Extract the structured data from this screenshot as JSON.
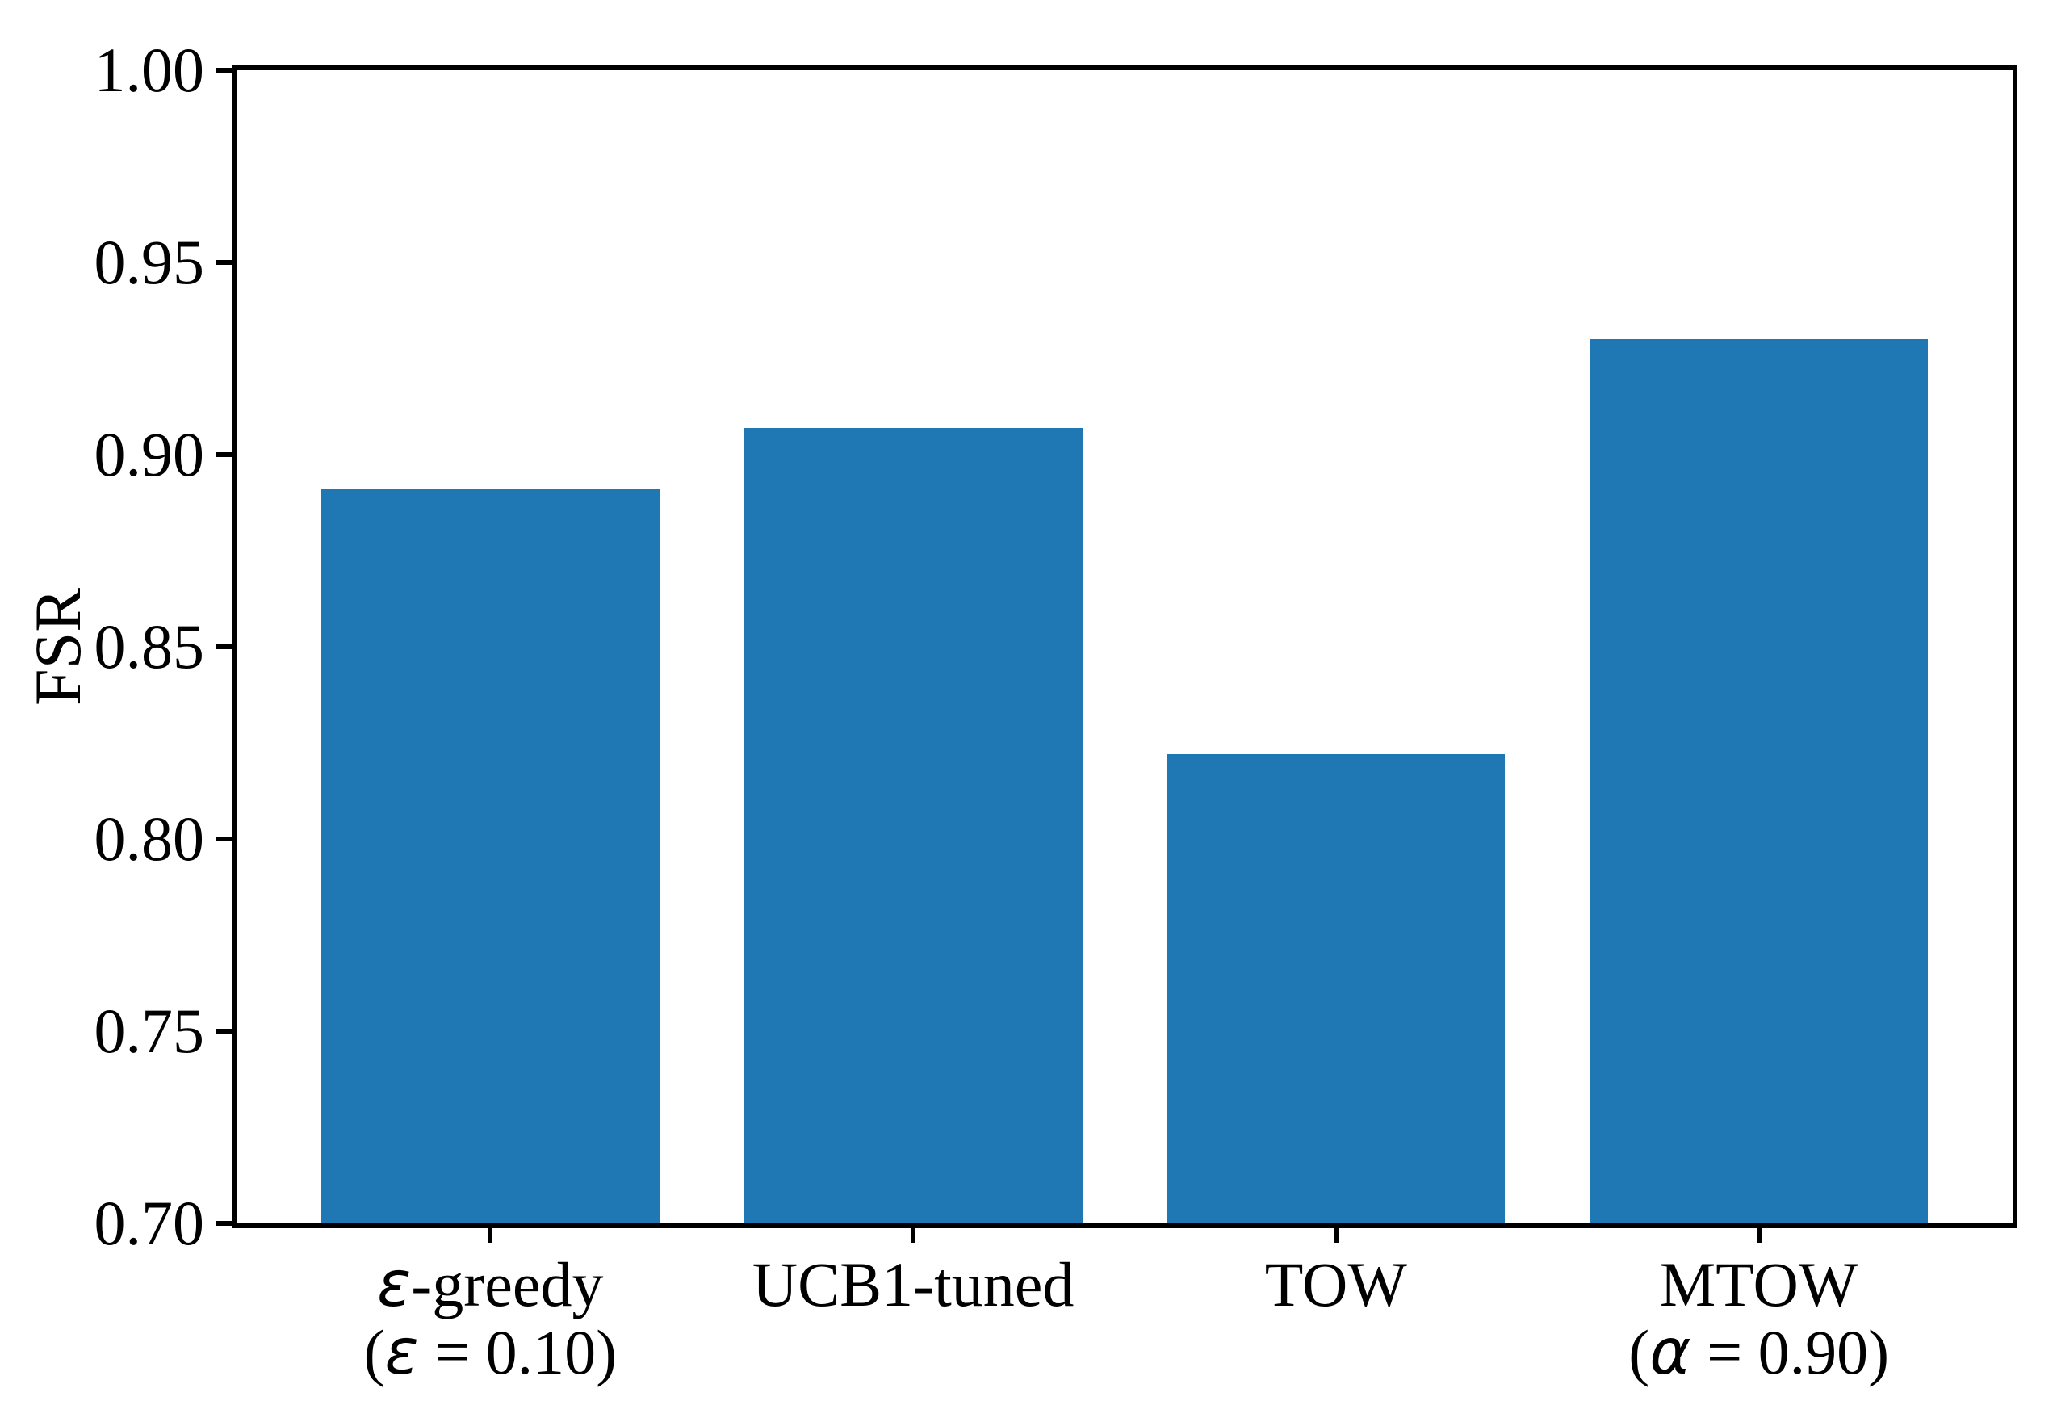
{
  "chart_data": {
    "type": "bar",
    "title": "",
    "xlabel": "",
    "ylabel": "FSR",
    "ylim": [
      0.7,
      1.0
    ],
    "ytick_values": [
      0.7,
      0.75,
      0.8,
      0.85,
      0.9,
      0.95,
      1.0
    ],
    "ytick_labels": [
      "0.70",
      "0.75",
      "0.80",
      "0.85",
      "0.90",
      "0.95",
      "1.00"
    ],
    "categories": [
      "ε-greedy\n(ε = 0.10)",
      "UCB1-tuned",
      "TOW",
      "MTOW\n(α = 0.90)"
    ],
    "values": [
      0.891,
      0.907,
      0.822,
      0.93
    ],
    "bar_color": "#1f77b4",
    "axis_color": "#000000",
    "background_color": "#ffffff",
    "grid": false,
    "legend": "none",
    "bar_width_fraction": 0.8,
    "x_margin_units": 0.6
  }
}
